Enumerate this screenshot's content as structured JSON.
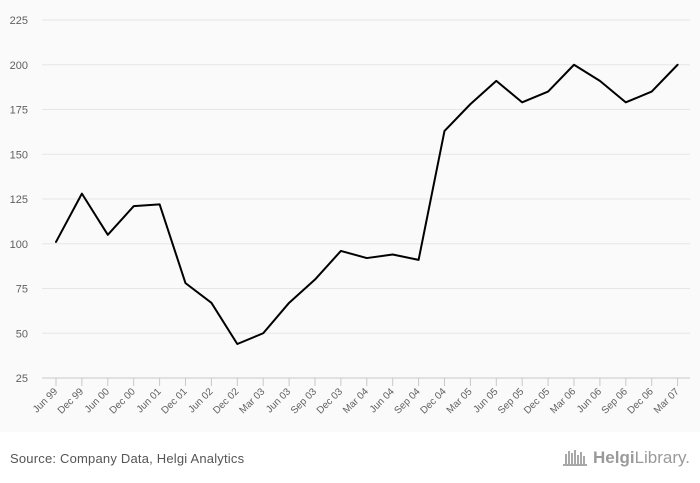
{
  "chart_data": {
    "type": "line",
    "title": "",
    "xlabel": "",
    "ylabel": "",
    "ylim": [
      25,
      225
    ],
    "yticks": [
      25,
      50,
      75,
      100,
      125,
      150,
      175,
      200,
      225
    ],
    "grid": true,
    "legend": "none",
    "line_color": "#000000",
    "categories": [
      "Jun 99",
      "Dec 99",
      "Jun 00",
      "Dec 00",
      "Jun 01",
      "Dec 01",
      "Jun 02",
      "Dec 02",
      "Mar 03",
      "Jun 03",
      "Sep 03",
      "Dec 03",
      "Mar 04",
      "Jun 04",
      "Sep 04",
      "Dec 04",
      "Mar 05",
      "Jun 05",
      "Sep 05",
      "Dec 05",
      "Mar 06",
      "Jun 06",
      "Sep 06",
      "Dec 06",
      "Mar 07"
    ],
    "series": [
      {
        "values": [
          101,
          128,
          105,
          121,
          122,
          78,
          67,
          44,
          50,
          67,
          80,
          96,
          92,
          94,
          91,
          163,
          178,
          191,
          179,
          185,
          200,
          191,
          179,
          185,
          200
        ]
      }
    ]
  },
  "footer": {
    "source": "Source: Company Data, Helgi Analytics",
    "brand_bold": "Helgi",
    "brand_rest": "Library."
  }
}
